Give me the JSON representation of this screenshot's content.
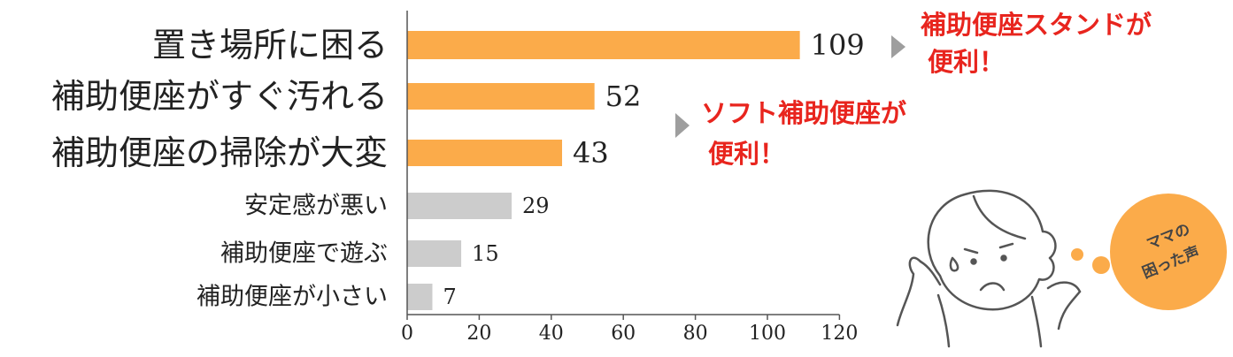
{
  "chart_data": {
    "type": "bar",
    "orientation": "horizontal",
    "categories": [
      "置き場所に困る",
      "補助便座がすぐ汚れる",
      "補助便座の掃除が大変",
      "安定感が悪い",
      "補助便座で遊ぶ",
      "補助便座が小さい"
    ],
    "values": [
      109,
      52,
      43,
      29,
      15,
      7
    ],
    "highlighted": [
      true,
      true,
      true,
      false,
      false,
      false
    ],
    "xlim": [
      0,
      120
    ],
    "xticks": [
      0,
      20,
      40,
      60,
      80,
      100,
      120
    ],
    "grid": false,
    "title": "",
    "xlabel": "",
    "ylabel": "",
    "colors": {
      "highlight": "#fbab4a",
      "normal": "#cccccc",
      "axis": "#555555",
      "callout": "#e8251e",
      "arrow": "#9e9e9e"
    }
  },
  "callouts": [
    {
      "lines": [
        "補助便座スタンドが",
        "便利！"
      ]
    },
    {
      "lines": [
        "ソフト補助便座が",
        "便利！"
      ]
    }
  ],
  "illustration": {
    "bubble_lines": [
      "ママの",
      "困った声"
    ],
    "bubble_color": "#fbab4a",
    "character": "troubled-mother-icon"
  }
}
